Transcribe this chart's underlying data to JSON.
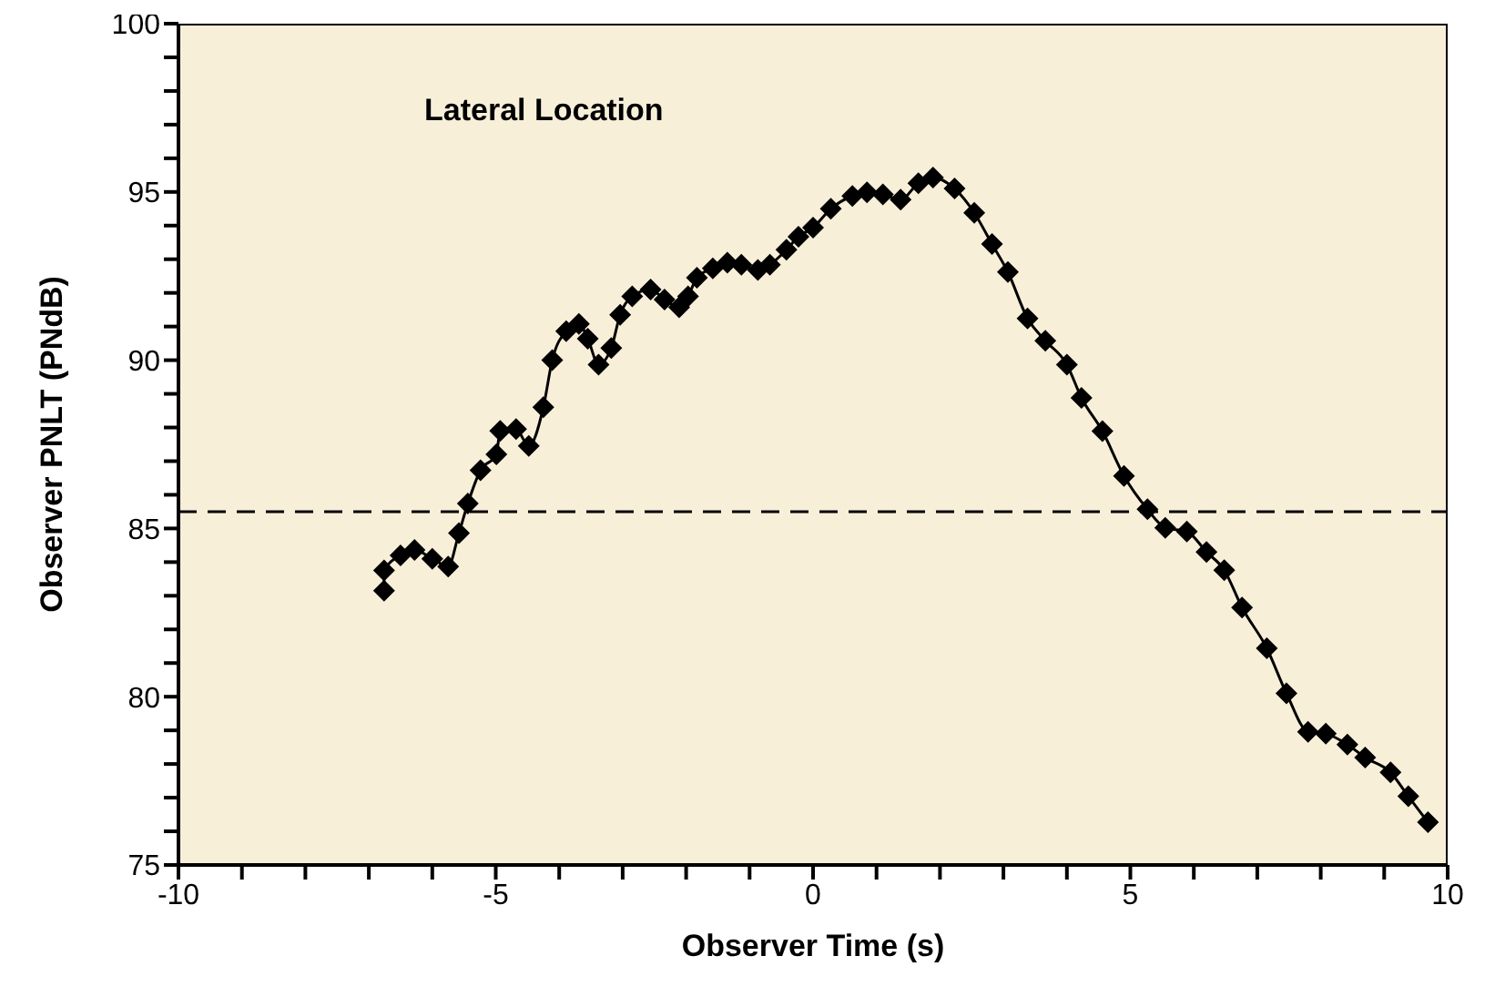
{
  "chart_data": {
    "type": "line",
    "title": "Lateral Location",
    "xlabel": "Observer Time (s)",
    "ylabel": "Observer PNLT (PNdB)",
    "xlim": [
      -10,
      10
    ],
    "ylim": [
      75,
      100
    ],
    "xticks": [
      -10,
      {
        "value": -9,
        "label": null
      },
      {
        "value": -8,
        "label": null
      },
      {
        "value": -7,
        "label": null
      },
      {
        "value": -6,
        "label": null
      },
      -5,
      {
        "value": -4,
        "label": null
      },
      {
        "value": -3,
        "label": null
      },
      {
        "value": -2,
        "label": null
      },
      {
        "value": -1,
        "label": null
      },
      0,
      {
        "value": 1,
        "label": null
      },
      {
        "value": 2,
        "label": null
      },
      {
        "value": 3,
        "label": null
      },
      {
        "value": 4,
        "label": null
      },
      5,
      {
        "value": 6,
        "label": null
      },
      {
        "value": 7,
        "label": null
      },
      {
        "value": 8,
        "label": null
      },
      {
        "value": 9,
        "label": null
      },
      10
    ],
    "yticks": [
      75,
      {
        "value": 76,
        "label": null
      },
      {
        "value": 77,
        "label": null
      },
      {
        "value": 78,
        "label": null
      },
      {
        "value": 79,
        "label": null
      },
      80,
      {
        "value": 81,
        "label": null
      },
      {
        "value": 82,
        "label": null
      },
      {
        "value": 83,
        "label": null
      },
      {
        "value": 84,
        "label": null
      },
      85,
      {
        "value": 86,
        "label": null
      },
      {
        "value": 87,
        "label": null
      },
      {
        "value": 88,
        "label": null
      },
      {
        "value": 89,
        "label": null
      },
      90,
      {
        "value": 91,
        "label": null
      },
      {
        "value": 92,
        "label": null
      },
      {
        "value": 93,
        "label": null
      },
      {
        "value": 94,
        "label": null
      },
      95,
      {
        "value": 96,
        "label": null
      },
      {
        "value": 97,
        "label": null
      },
      {
        "value": 98,
        "label": null
      },
      {
        "value": 99,
        "label": null
      },
      100
    ],
    "marker": "diamond",
    "line_style": "solid",
    "ref_lines": [
      {
        "axis": "y",
        "value": 85.5,
        "label": null,
        "color": "#000000",
        "line_style": "dashed"
      }
    ],
    "series": [
      {
        "color": "#000000",
        "x": [
          -6.76,
          -6.76,
          -6.5,
          -6.28,
          -6.0,
          -5.75,
          -5.58,
          -5.44,
          -5.24,
          -4.99,
          -4.93,
          -4.68,
          -4.48,
          -4.25,
          -4.11,
          -3.89,
          -3.69,
          -3.55,
          -3.38,
          -3.18,
          -3.04,
          -2.85,
          -2.56,
          -2.34,
          -2.11,
          -1.97,
          -1.83,
          -1.58,
          -1.35,
          -1.13,
          -0.87,
          -0.68,
          -0.42,
          -0.23,
          0,
          0.28,
          0.62,
          0.85,
          1.1,
          1.38,
          1.66,
          1.89,
          2.23,
          2.54,
          2.82,
          3.07,
          3.38,
          3.66,
          4.0,
          4.23,
          4.56,
          4.9,
          5.27,
          5.55,
          5.89,
          6.2,
          6.48,
          6.76,
          7.15,
          7.46,
          7.8,
          8.08,
          8.42,
          8.7,
          9.1,
          9.38,
          9.69
        ],
        "values": [
          83.15,
          83.75,
          84.2,
          84.36,
          84.1,
          83.87,
          84.86,
          85.74,
          86.73,
          87.2,
          87.9,
          87.95,
          87.45,
          88.6,
          90.0,
          90.86,
          91.08,
          90.64,
          89.87,
          90.36,
          91.35,
          91.9,
          92.1,
          91.8,
          91.57,
          91.9,
          92.45,
          92.73,
          92.9,
          92.84,
          92.68,
          92.84,
          93.28,
          93.67,
          93.94,
          94.5,
          94.88,
          94.99,
          94.93,
          94.77,
          95.26,
          95.43,
          95.1,
          94.38,
          93.45,
          92.62,
          91.24,
          90.58,
          89.87,
          88.88,
          87.89,
          86.56,
          85.57,
          85.02,
          84.91,
          84.3,
          83.76,
          82.65,
          81.44,
          80.1,
          78.96,
          78.9,
          78.58,
          78.19,
          77.75,
          77.04,
          76.27
        ]
      }
    ]
  }
}
